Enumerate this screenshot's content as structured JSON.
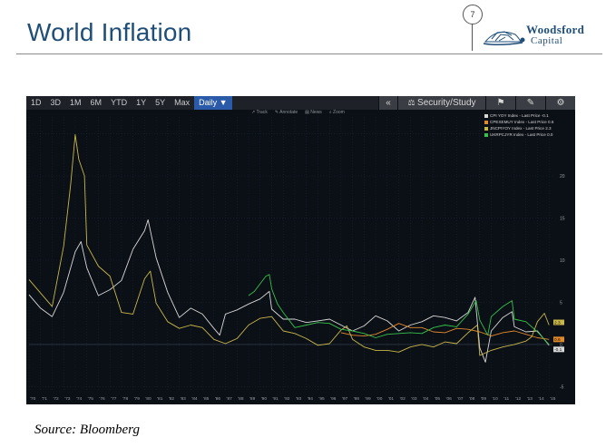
{
  "slide": {
    "title": "World Inflation",
    "page_number": "7",
    "source": "Source: Bloomberg"
  },
  "logo": {
    "line1": "Woodsford",
    "line2": "Capital",
    "accent": "#1f4e79"
  },
  "toolbar": {
    "ranges": [
      "1D",
      "3D",
      "1M",
      "6M",
      "YTD",
      "1Y",
      "5Y",
      "Max"
    ],
    "frequency": "Daily ▼",
    "collapse": "«",
    "security_study": "Security/Study",
    "flag_icon": "flag-icon",
    "edit_icon": "edit-icon",
    "settings_icon": "gear-icon"
  },
  "subtools": [
    "Track",
    "Annotate",
    "News",
    "Zoom"
  ],
  "legend": [
    {
      "label": "CPI YOY Index - Last Price",
      "value": "-0.1",
      "color": "#d8d8d8"
    },
    {
      "label": "CPEXEMUY Index - Last Price",
      "value": "0.6",
      "color": "#e08a2e"
    },
    {
      "label": "JNCPIYOY Index - Last Price",
      "value": "2.3",
      "color": "#c8b84a"
    },
    {
      "label": "UKRPCJYR Index - Last Price",
      "value": "0.0",
      "color": "#36c24a"
    }
  ],
  "chart_data": {
    "type": "line",
    "title": "",
    "xlabel": "",
    "ylabel": "",
    "xlim": [
      1970,
      2015.3
    ],
    "ylim": [
      -5.5,
      27
    ],
    "yticks": [
      -5,
      0,
      5,
      10,
      15,
      20,
      25
    ],
    "xticks": [
      "'70",
      "'71",
      "'72",
      "'73",
      "'74",
      "'75",
      "'76",
      "'77",
      "'78",
      "'79",
      "'80",
      "'81",
      "'82",
      "'83",
      "'84",
      "'85",
      "'86",
      "'87",
      "'88",
      "'89",
      "'90",
      "'91",
      "'92",
      "'93",
      "'94",
      "'95",
      "'96",
      "'97",
      "'98",
      "'99",
      "'00",
      "'01",
      "'02",
      "'03",
      "'04",
      "'05",
      "'06",
      "'07",
      "'08",
      "'09",
      "'10",
      "'11",
      "'12",
      "'13",
      "'14",
      "'15"
    ],
    "last_price_labels": [
      "2.3",
      "0.6",
      "-0.1"
    ],
    "grid": true,
    "series": [
      {
        "name": "CPI YOY Index",
        "color": "#d8d8d8",
        "x": [
          1970,
          1971,
          1972,
          1973,
          1974,
          1974.5,
          1975,
          1976,
          1977,
          1978,
          1979,
          1980,
          1980.3,
          1981,
          1982,
          1983,
          1984,
          1985,
          1986,
          1986.5,
          1987,
          1988,
          1989,
          1990,
          1990.8,
          1991,
          1992,
          1993,
          1994,
          1995,
          1996,
          1997,
          1998,
          1999,
          2000,
          2001,
          2002,
          2003,
          2004,
          2005,
          2006,
          2007,
          2008,
          2008.6,
          2009,
          2009.5,
          2010,
          2011,
          2011.8,
          2012,
          2013,
          2014,
          2015
        ],
        "y": [
          5.9,
          4.3,
          3.3,
          6.2,
          11.0,
          12.2,
          9.1,
          5.8,
          6.5,
          7.6,
          11.3,
          13.5,
          14.8,
          10.3,
          6.2,
          3.2,
          4.3,
          3.6,
          1.9,
          1.1,
          3.6,
          4.1,
          4.8,
          5.4,
          6.3,
          4.2,
          3.0,
          3.0,
          2.6,
          2.8,
          3.0,
          2.3,
          1.6,
          2.2,
          3.4,
          2.8,
          1.6,
          2.3,
          2.7,
          3.4,
          3.2,
          2.8,
          3.8,
          5.6,
          -0.4,
          -2.1,
          1.6,
          3.2,
          3.9,
          2.1,
          1.5,
          1.6,
          -0.1
        ]
      },
      {
        "name": "CPEXEMUY Index",
        "color": "#e08a2e",
        "x": [
          1997,
          1998,
          1999,
          2000,
          2001,
          2002,
          2003,
          2004,
          2005,
          2006,
          2007,
          2008,
          2009,
          2010,
          2011,
          2012,
          2013,
          2014,
          2015
        ],
        "y": [
          1.4,
          1.1,
          1.0,
          1.2,
          1.8,
          2.5,
          2.0,
          2.0,
          1.5,
          1.4,
          1.9,
          1.8,
          1.5,
          1.0,
          1.4,
          1.6,
          1.2,
          0.8,
          0.6
        ]
      },
      {
        "name": "JNCPIYOY Index",
        "color": "#c8b84a",
        "x": [
          1970,
          1971,
          1972,
          1973,
          1973.6,
          1974,
          1974.3,
          1974.8,
          1975,
          1976,
          1977,
          1978,
          1979,
          1980,
          1980.5,
          1981,
          1982,
          1983,
          1984,
          1985,
          1986,
          1987,
          1988,
          1989,
          1990,
          1991,
          1992,
          1993,
          1994,
          1995,
          1996,
          1997,
          1997.5,
          1998,
          1999,
          2000,
          2001,
          2002,
          2003,
          2004,
          2005,
          2006,
          2007,
          2008,
          2008.8,
          2009,
          2010,
          2011,
          2012,
          2013,
          2013.5,
          2014,
          2014.6,
          2015
        ],
        "y": [
          7.7,
          6.1,
          4.5,
          11.7,
          19.0,
          24.9,
          22.0,
          20.0,
          11.8,
          9.3,
          8.1,
          3.8,
          3.6,
          7.8,
          8.7,
          4.9,
          2.7,
          1.9,
          2.3,
          2.0,
          0.6,
          0.1,
          0.7,
          2.3,
          3.1,
          3.3,
          1.6,
          1.3,
          0.7,
          -0.1,
          0.1,
          1.7,
          2.2,
          0.6,
          -0.3,
          -0.7,
          -0.7,
          -0.9,
          -0.3,
          0.0,
          -0.3,
          0.3,
          0.1,
          1.4,
          2.3,
          -1.3,
          -0.7,
          -0.3,
          0.0,
          0.4,
          0.9,
          2.7,
          3.7,
          2.3
        ]
      },
      {
        "name": "UKRPCJYR Index",
        "color": "#36c24a",
        "x": [
          1989,
          1989.5,
          1990,
          1990.5,
          1990.8,
          1991,
          1991.5,
          1992,
          1993,
          1994,
          1995,
          1996,
          1997,
          1998,
          1999,
          2000,
          2001,
          2002,
          2003,
          2004,
          2005,
          2006,
          2007,
          2008,
          2008.7,
          2009,
          2009.7,
          2010,
          2011,
          2011.8,
          2012,
          2013,
          2014,
          2015
        ],
        "y": [
          5.8,
          6.3,
          7.2,
          8.1,
          8.3,
          6.6,
          4.8,
          3.8,
          2.0,
          2.3,
          2.6,
          2.5,
          1.8,
          1.6,
          1.3,
          0.8,
          1.2,
          1.3,
          1.4,
          1.3,
          2.0,
          2.3,
          2.1,
          3.6,
          5.2,
          2.9,
          1.1,
          3.3,
          4.5,
          5.2,
          3.0,
          2.7,
          1.5,
          0.0
        ]
      }
    ]
  }
}
